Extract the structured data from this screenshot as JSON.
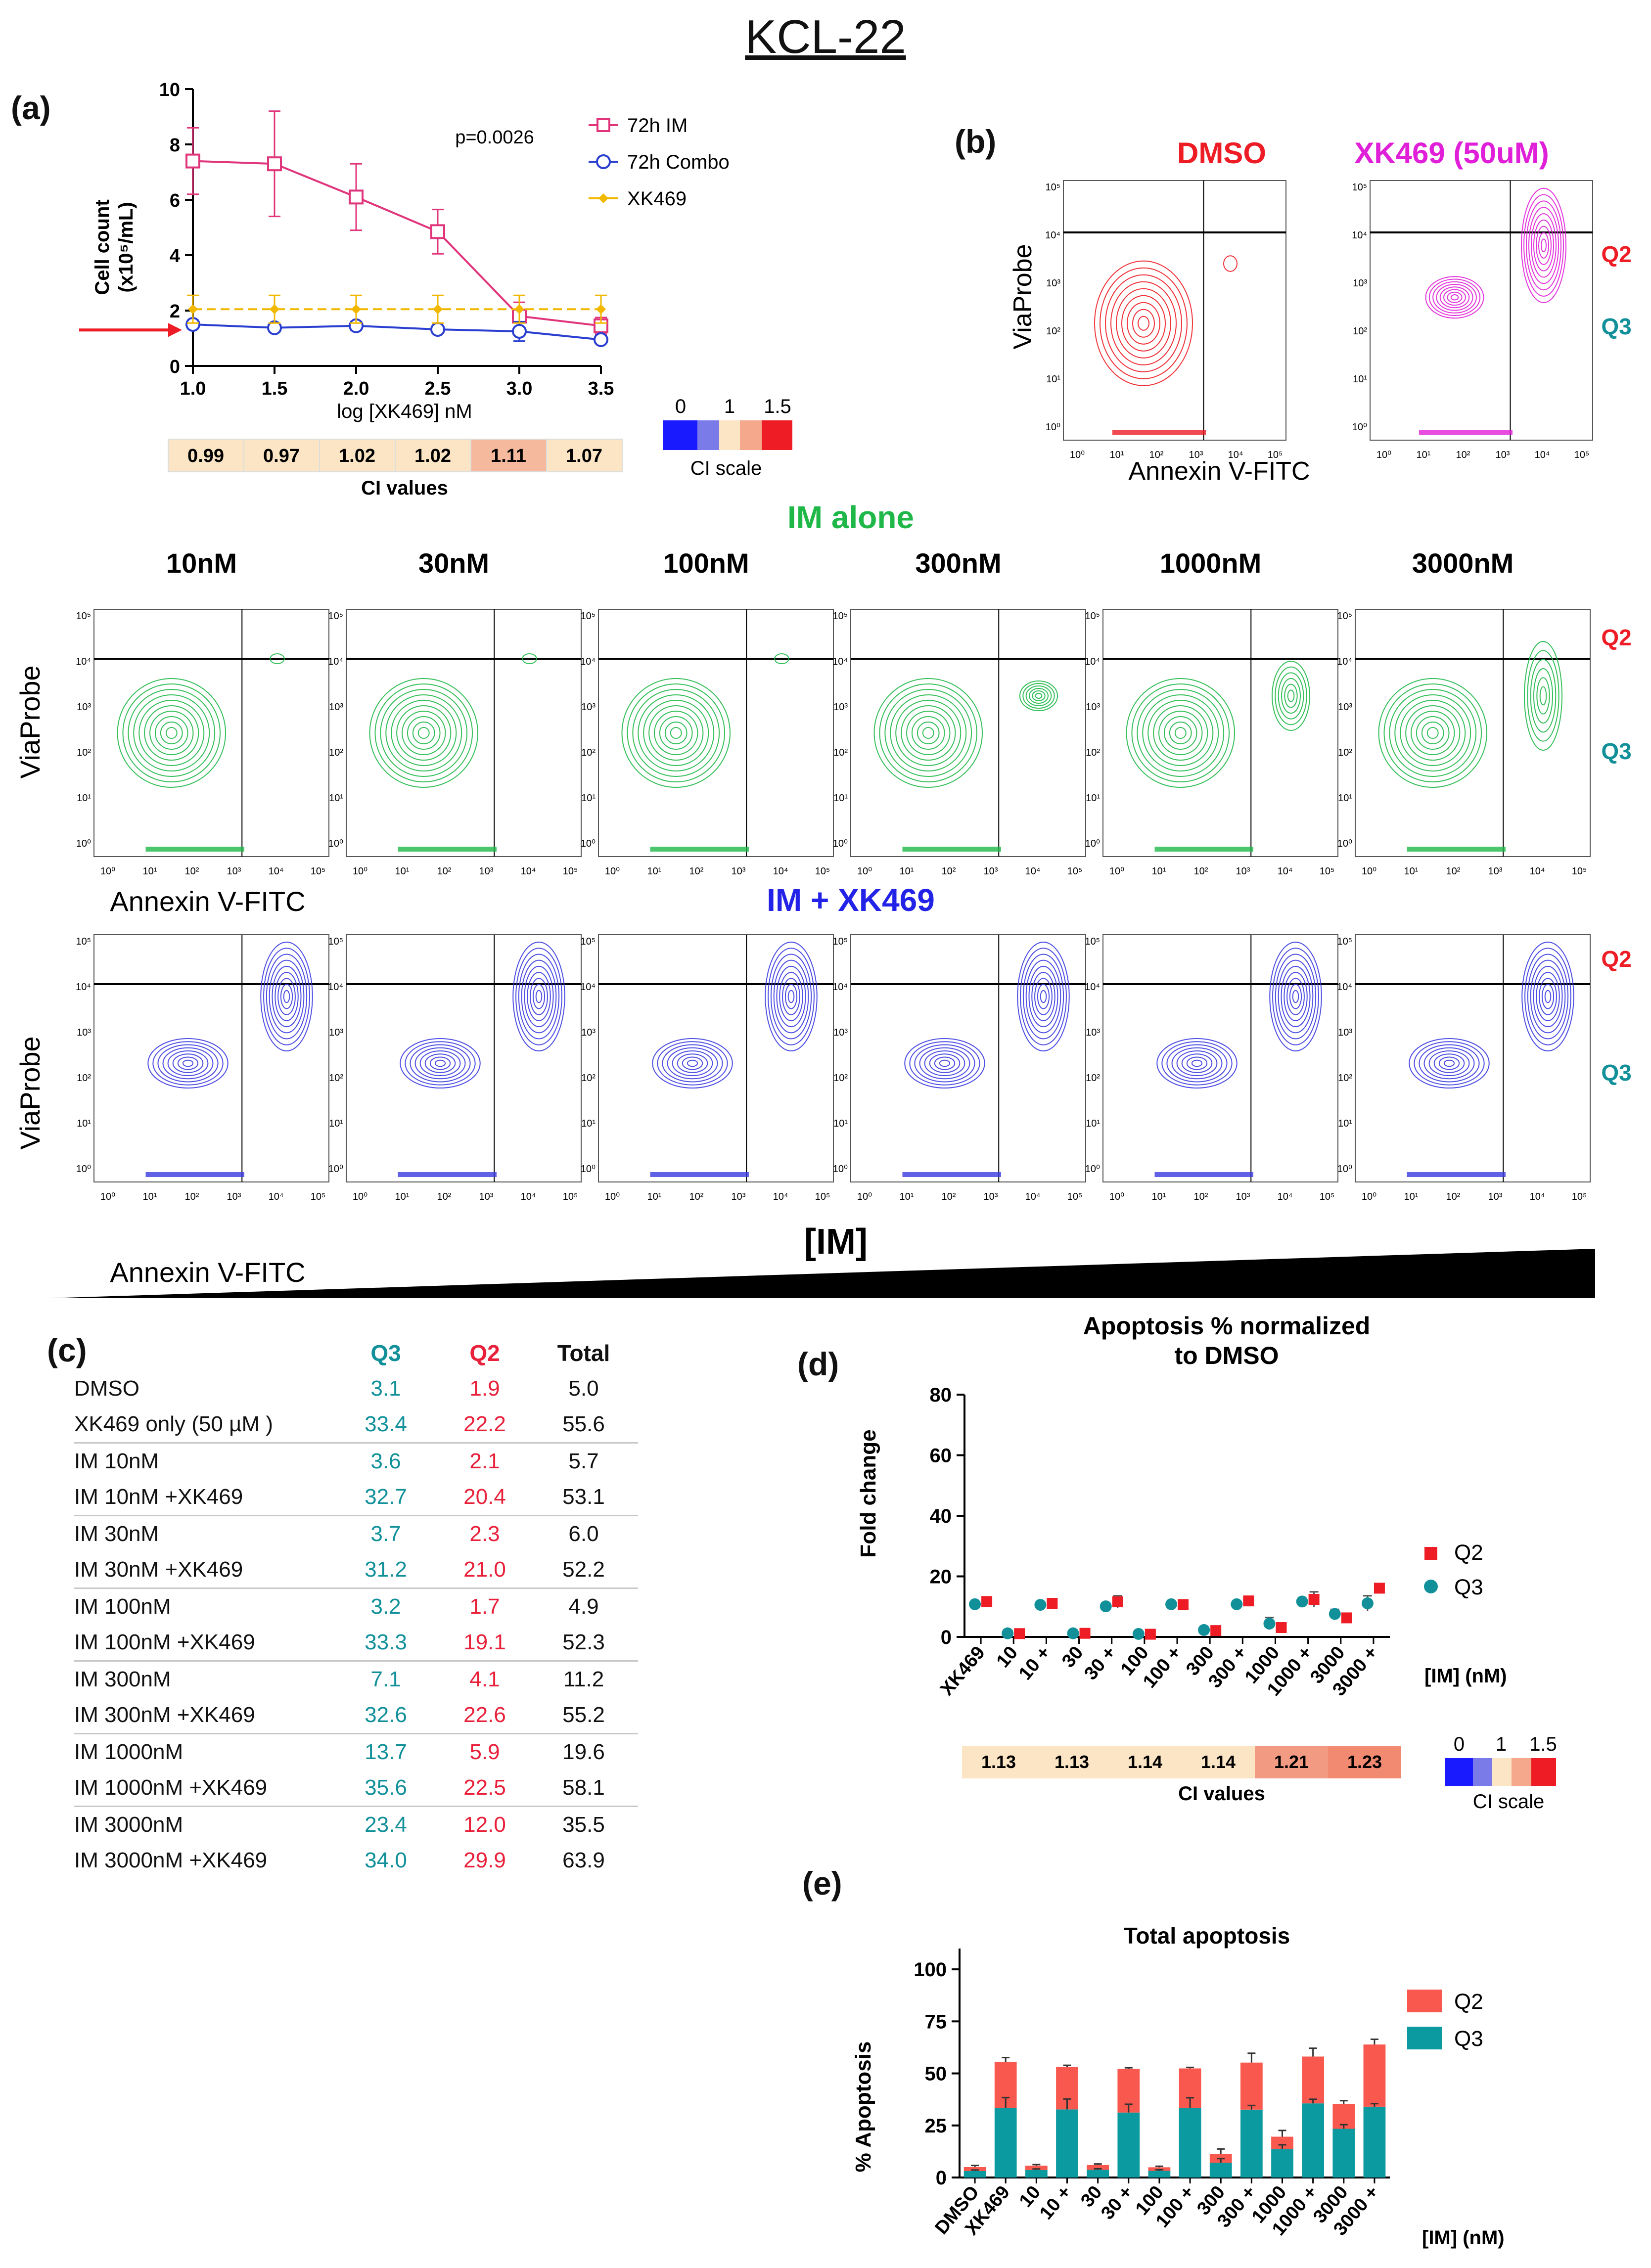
{
  "figure_title": "KCL-22",
  "panel_labels": {
    "a": "(a)",
    "b": "(b)",
    "c": "(c)",
    "d": "(d)",
    "e": "(e)"
  },
  "panel_a": {
    "ylabel_line1": "Cell count",
    "ylabel_line2": "(x10⁵/mL)",
    "xlabel": "log [XK469] nM",
    "pvalue": "p=0.0026",
    "yticks": [
      "0",
      "2",
      "4",
      "6",
      "8",
      "10"
    ],
    "xticks": [
      "1.0",
      "1.5",
      "2.0",
      "2.5",
      "3.0",
      "3.5"
    ],
    "legend": [
      "72h IM",
      "72h Combo",
      "XK469"
    ],
    "ci_label": "CI values",
    "ci_values": [
      "0.99",
      "0.97",
      "1.02",
      "1.02",
      "1.11",
      "1.07"
    ],
    "ci_scale_label": "CI scale",
    "ci_scale_ticks": [
      "0",
      "1",
      "1.5"
    ]
  },
  "flow": {
    "dmso_title": "DMSO",
    "xk_title": "XK469 (50uM)",
    "im_alone_title": "IM alone",
    "combo_title": "IM + XK469",
    "concentrations": [
      "10nM",
      "30nM",
      "100nM",
      "300nM",
      "1000nM",
      "3000nM"
    ],
    "ylabel": "ViaProbe",
    "xlabel": "Annexin V-FITC",
    "q2": "Q2",
    "q3": "Q3",
    "im_gradient_label": "[IM]",
    "axis_ticks": [
      "10⁰",
      "10¹",
      "10²",
      "10³",
      "10⁴",
      "10⁵"
    ]
  },
  "table_c": {
    "headers": [
      "",
      "Q3",
      "Q2",
      "Total"
    ],
    "rows": [
      [
        "DMSO",
        "3.1",
        "1.9",
        "5.0"
      ],
      [
        "XK469 only (50 µM )",
        "33.4",
        "22.2",
        "55.6"
      ],
      [
        "IM 10nM",
        "3.6",
        "2.1",
        "5.7"
      ],
      [
        "IM 10nM +XK469",
        "32.7",
        "20.4",
        "53.1"
      ],
      [
        "IM 30nM",
        "3.7",
        "2.3",
        "6.0"
      ],
      [
        "IM 30nM +XK469",
        "31.2",
        "21.0",
        "52.2"
      ],
      [
        "IM 100nM",
        "3.2",
        "1.7",
        "4.9"
      ],
      [
        "IM 100nM +XK469",
        "33.3",
        "19.1",
        "52.3"
      ],
      [
        "IM 300nM",
        "7.1",
        "4.1",
        "11.2"
      ],
      [
        "IM 300nM +XK469",
        "32.6",
        "22.6",
        "55.2"
      ],
      [
        "IM 1000nM",
        "13.7",
        "5.9",
        "19.6"
      ],
      [
        "IM 1000nM +XK469",
        "35.6",
        "22.5",
        "58.1"
      ],
      [
        "IM 3000nM",
        "23.4",
        "12.0",
        "35.5"
      ],
      [
        "IM 3000nM +XK469",
        "34.0",
        "29.9",
        "63.9"
      ]
    ]
  },
  "panel_d": {
    "ci_label": "CI values",
    "ci_values": [
      "1.13",
      "1.13",
      "1.14",
      "1.14",
      "1.21",
      "1.23"
    ],
    "ci_scale_label": "CI scale",
    "ci_scale_ticks": [
      "0",
      "1",
      "1.5"
    ],
    "unit_label": "[IM] (nM)"
  },
  "panel_e": {
    "unit_label": "[IM] (nM)"
  },
  "colors": {
    "im": "#e0357a",
    "combo": "#2a3fd0",
    "xk": "#f2b800",
    "green": "#1fb848",
    "magenta": "#e020d8",
    "red": "#ee1c24",
    "teal": "#11909a",
    "q2bar": "#f8584d",
    "q3bar": "#0b9aa0"
  },
  "chart_data": [
    {
      "id": "a",
      "type": "line",
      "title": "",
      "xlabel": "log [XK469] nM",
      "ylabel": "Cell count (x10⁵/mL)",
      "xlim": [
        1.0,
        3.5
      ],
      "ylim": [
        0,
        10
      ],
      "x": [
        1.0,
        1.5,
        2.0,
        2.5,
        3.0,
        3.5
      ],
      "series": [
        {
          "name": "72h IM",
          "values": [
            7.4,
            7.3,
            6.1,
            4.85,
            1.8,
            1.45
          ],
          "errors": [
            1.2,
            1.9,
            1.2,
            0.8,
            0.5,
            0.3
          ]
        },
        {
          "name": "72h Combo",
          "values": [
            1.5,
            1.38,
            1.45,
            1.32,
            1.25,
            0.95
          ],
          "errors": [
            0.15,
            0.15,
            0.15,
            0.1,
            0.35,
            0.1
          ]
        },
        {
          "name": "XK469",
          "values": [
            2.05,
            2.05,
            2.05,
            2.05,
            2.05,
            2.05
          ],
          "errors": [
            0.5,
            0.5,
            0.5,
            0.5,
            0.5,
            0.5
          ]
        }
      ],
      "annotation": "p=0.0026"
    },
    {
      "id": "d",
      "type": "scatter",
      "title": "Apoptosis % normalized to DMSO",
      "ylabel": "Fold change",
      "xlabel": "[IM] (nM)",
      "ylim": [
        0,
        80
      ],
      "yticks": [
        "0",
        "20",
        "40",
        "60",
        "80"
      ],
      "categories": [
        "XK469",
        "10",
        "10 +",
        "30",
        "30 +",
        "100",
        "100 +",
        "300",
        "300 +",
        "1000",
        "1000 +",
        "3000",
        "3000 +"
      ],
      "series": [
        {
          "name": "Q2",
          "values": [
            11.7,
            1.1,
            11.1,
            1.2,
            11.6,
            0.9,
            10.7,
            2.1,
            11.9,
            3.1,
            12.4,
            6.3,
            16.1
          ],
          "errors": [
            0.3,
            0.2,
            0.5,
            0.2,
            2.0,
            0.2,
            1.5,
            0.3,
            0.6,
            0.5,
            2.5,
            0.6,
            1.5
          ]
        },
        {
          "name": "Q3",
          "values": [
            10.8,
            1.2,
            10.6,
            1.2,
            10.1,
            1.0,
            10.8,
            2.3,
            10.8,
            4.4,
            11.7,
            7.6,
            11.1
          ],
          "errors": [
            0.3,
            0.2,
            0.8,
            0.2,
            1.2,
            0.2,
            0.8,
            0.3,
            1.0,
            2.0,
            0.8,
            1.5,
            2.5
          ]
        }
      ]
    },
    {
      "id": "e",
      "type": "bar",
      "title": "Total apoptosis",
      "ylabel": "% Apoptosis",
      "xlabel": "[IM] (nM)",
      "ylim": [
        0,
        110
      ],
      "yticks": [
        "0",
        "25",
        "50",
        "75",
        "100"
      ],
      "categories": [
        "DMSO",
        "XK469",
        "10",
        "10 +",
        "30",
        "30 +",
        "100",
        "100 +",
        "300",
        "300 +",
        "1000",
        "1000 +",
        "3000",
        "3000 +"
      ],
      "series": [
        {
          "name": "Q3",
          "values": [
            3.1,
            33.4,
            3.6,
            32.7,
            3.7,
            31.2,
            3.2,
            33.3,
            7.1,
            32.6,
            13.7,
            35.6,
            23.4,
            34.0
          ],
          "errors": [
            0.5,
            5.0,
            0.5,
            5.0,
            0.5,
            4.0,
            0.5,
            5.0,
            2.0,
            2.0,
            2.0,
            2.0,
            2.0,
            1.5
          ]
        },
        {
          "name": "Q2",
          "values": [
            1.9,
            22.2,
            2.1,
            20.4,
            2.3,
            21.0,
            1.7,
            19.1,
            4.1,
            22.6,
            5.9,
            22.5,
            12.0,
            29.9
          ],
          "errors": [
            0.8,
            2.0,
            0.5,
            0.8,
            0.5,
            0.5,
            0.5,
            0.5,
            2.5,
            4.5,
            3.0,
            4.0,
            1.5,
            2.5
          ]
        }
      ],
      "legend": [
        "Q2",
        "Q3"
      ]
    }
  ]
}
